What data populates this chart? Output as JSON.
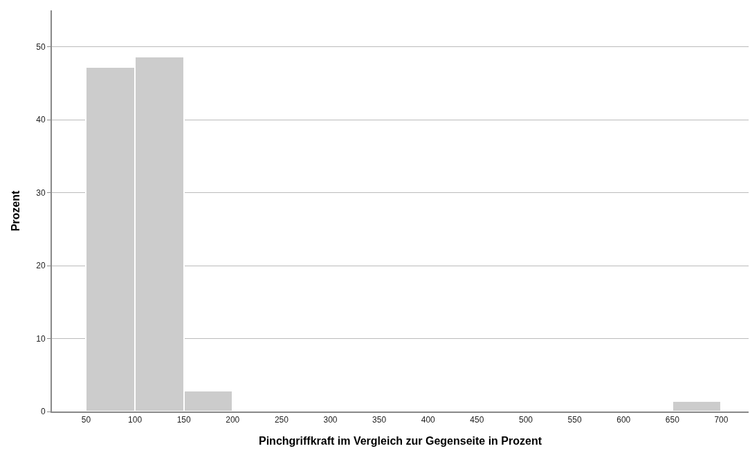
{
  "chart_data": {
    "type": "histogram",
    "xlabel": "Pinchgriffkraft im Vergleich zur Gegenseite in Prozent",
    "ylabel": "Prozent",
    "bins": [
      50,
      100,
      150,
      200,
      250,
      300,
      350,
      400,
      450,
      500,
      550,
      600,
      650,
      700
    ],
    "values": [
      47.2,
      48.6,
      2.8,
      0,
      0,
      0,
      0,
      0,
      0,
      0,
      0,
      0,
      1.4
    ],
    "color": "#cccccc",
    "xlim": [
      15,
      728
    ],
    "xticks": [
      50,
      100,
      150,
      200,
      250,
      300,
      350,
      400,
      450,
      500,
      550,
      600,
      650,
      700
    ],
    "ylim": [
      0,
      55
    ],
    "yticks": [
      0,
      10,
      20,
      30,
      40,
      50
    ],
    "grid": "y",
    "legend": false
  }
}
